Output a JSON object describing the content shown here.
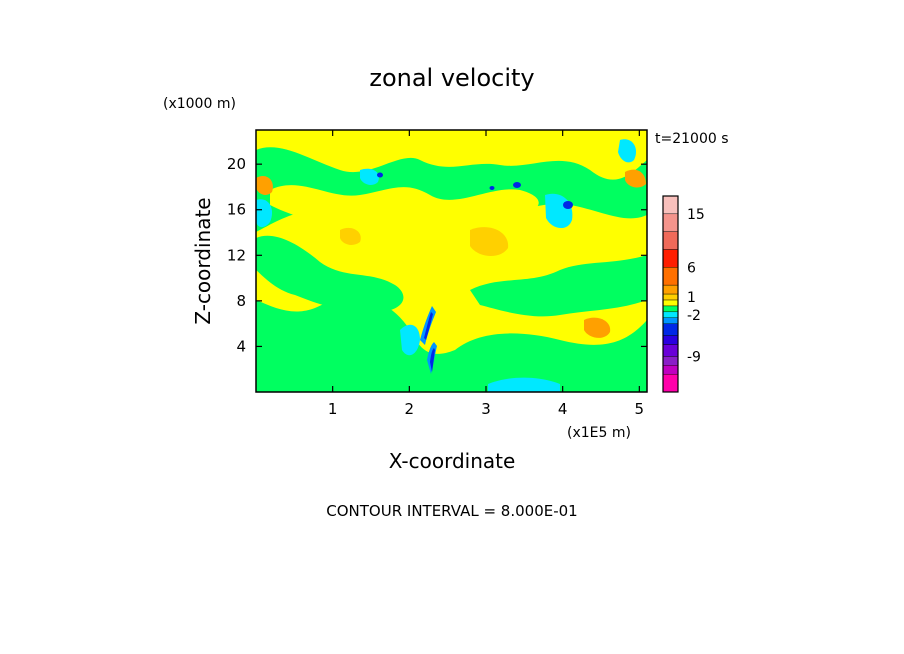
{
  "chart_data": {
    "type": "heatmap",
    "title": "zonal velocity",
    "time_label": "t=21000 s",
    "xlabel": "X-coordinate",
    "ylabel": "Z-coordinate",
    "x_unit": "(x1E5 m)",
    "y_unit": "(x1000 m)",
    "xlim": [
      0,
      5.1
    ],
    "ylim": [
      0,
      23
    ],
    "x_ticks": [
      1,
      2,
      3,
      4,
      5
    ],
    "y_ticks": [
      4,
      8,
      12,
      16,
      20
    ],
    "x_tick_labels": [
      "1",
      "2",
      "3",
      "4",
      "5"
    ],
    "y_tick_labels": [
      "4",
      "8",
      "12",
      "16",
      "20"
    ],
    "contour_interval_text": "CONTOUR INTERVAL = 8.000E-01",
    "colorbar": {
      "levels": [
        {
          "min": -15,
          "max": -12,
          "color": "#ff00aa"
        },
        {
          "min": -12,
          "max": -10.5,
          "color": "#c000c0"
        },
        {
          "min": -10.5,
          "max": -9,
          "color": "#8a1ec8"
        },
        {
          "min": -9,
          "max": -7,
          "color": "#6a00d8"
        },
        {
          "min": -7,
          "max": -5.5,
          "color": "#2a00e0"
        },
        {
          "min": -5.5,
          "max": -3.5,
          "color": "#0028e6"
        },
        {
          "min": -3.5,
          "max": -2.5,
          "color": "#0096ff"
        },
        {
          "min": -2.5,
          "max": -1.5,
          "color": "#00e8ff"
        },
        {
          "min": -1.5,
          "max": -0.5,
          "color": "#00ff60"
        },
        {
          "min": -0.5,
          "max": 0.5,
          "color": "#ffff00"
        },
        {
          "min": 0.5,
          "max": 1.5,
          "color": "#ffd000"
        },
        {
          "min": 1.5,
          "max": 3,
          "color": "#ffa000"
        },
        {
          "min": 3,
          "max": 6,
          "color": "#ff7000"
        },
        {
          "min": 6,
          "max": 9,
          "color": "#ff1e00"
        },
        {
          "min": 9,
          "max": 12,
          "color": "#f06a5a"
        },
        {
          "min": 12,
          "max": 15,
          "color": "#f4948c"
        },
        {
          "min": 15,
          "max": 18,
          "color": "#f8c0bc"
        }
      ],
      "tick_labels": [
        {
          "value": 15,
          "text": "15"
        },
        {
          "value": 6,
          "text": "6"
        },
        {
          "value": 1,
          "text": "1"
        },
        {
          "value": -2,
          "text": "-2"
        },
        {
          "value": -9,
          "text": "-9"
        }
      ]
    }
  }
}
